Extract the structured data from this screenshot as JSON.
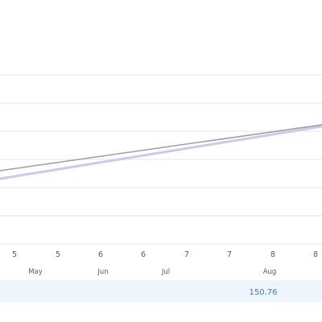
{
  "chart_data": {
    "type": "line",
    "x_ticks": [
      "5",
      "5",
      "6",
      "6",
      "7",
      "7",
      "8",
      "8"
    ],
    "x_months": [
      "May",
      "Jun",
      "Jul",
      "Aug"
    ],
    "series": [
      {
        "values": [
          [
            0,
            212
          ],
          [
            400,
            155
          ]
        ]
      },
      {
        "values": [
          [
            0,
            222
          ],
          [
            400,
            157
          ]
        ]
      }
    ],
    "value_readout": "150.76",
    "grid": true,
    "colors": {
      "series_dark": "#9e9e9e",
      "series_light": "#c5ccef",
      "grid": "#e4e6ea",
      "readout_band": "#eef4fb",
      "readout_text": "#2f7fd0",
      "axis_text": "#555b66"
    }
  }
}
